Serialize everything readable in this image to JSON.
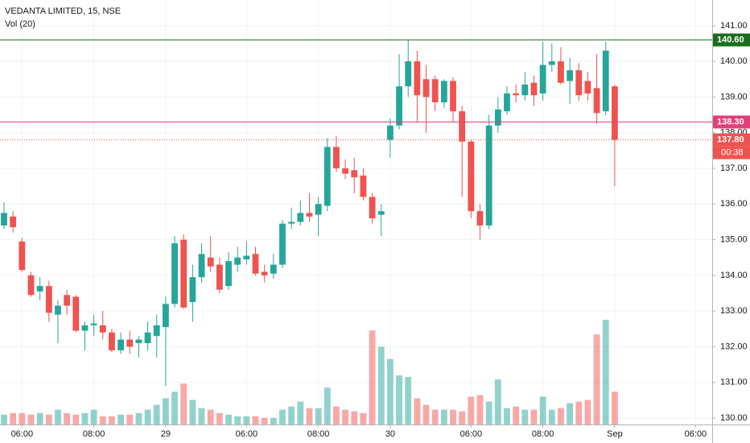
{
  "chart_data": {
    "type": "candlestick",
    "title": "VEDANTA LIMITED, 15, NSE",
    "subtitle": "Vol (20)",
    "up_color": "#26a69a",
    "down_color": "#ef5350",
    "grid": true,
    "x": [
      0,
      1,
      2,
      3,
      4,
      5,
      6,
      7,
      8,
      9,
      10,
      11,
      12,
      13,
      14,
      15,
      16,
      17,
      18,
      19,
      20,
      21,
      22,
      23,
      24,
      25,
      26,
      27,
      28,
      29,
      30,
      31,
      32,
      33,
      34,
      35,
      36,
      37,
      38,
      39,
      40,
      41,
      42,
      43,
      44,
      45,
      46,
      47,
      48,
      49,
      50,
      51,
      52,
      53,
      54,
      55,
      56,
      57,
      58,
      59,
      60,
      61,
      62,
      63,
      64,
      65,
      66,
      67,
      68
    ],
    "open": [
      135.4,
      135.65,
      134.95,
      134.0,
      133.55,
      133.7,
      132.9,
      133.45,
      133.4,
      132.45,
      132.6,
      132.6,
      132.4,
      131.9,
      132.2,
      132.1,
      132.1,
      132.3,
      132.55,
      133.2,
      135.0,
      133.25,
      133.95,
      134.5,
      134.3,
      133.7,
      134.3,
      134.45,
      134.6,
      134.1,
      134.05,
      134.3,
      135.45,
      135.5,
      135.75,
      135.7,
      135.95,
      137.6,
      137.0,
      136.95,
      136.8,
      136.2,
      135.7,
      137.8,
      138.2,
      139.3,
      140.0,
      139.5,
      139.5,
      138.85,
      139.45,
      138.6,
      137.75,
      135.8,
      135.4,
      138.2,
      138.6,
      139.1,
      139.05,
      139.4,
      139.1,
      139.9,
      140.0,
      139.45,
      139.75,
      139.45,
      139.25,
      138.6,
      139.3
    ],
    "high": [
      136.05,
      135.8,
      135.05,
      134.1,
      133.95,
      133.85,
      133.3,
      133.6,
      133.45,
      132.7,
      132.9,
      133.0,
      132.5,
      132.4,
      132.45,
      132.3,
      132.7,
      132.9,
      133.4,
      135.1,
      135.15,
      134.3,
      134.9,
      135.1,
      134.5,
      134.65,
      134.8,
      134.95,
      134.8,
      134.3,
      134.6,
      135.55,
      135.9,
      136.1,
      136.3,
      136.2,
      137.85,
      137.9,
      137.25,
      137.3,
      137.0,
      136.3,
      136.0,
      138.4,
      140.2,
      140.6,
      140.3,
      139.9,
      139.6,
      139.5,
      139.55,
      138.75,
      137.8,
      136.0,
      138.5,
      139.0,
      139.3,
      139.35,
      139.7,
      139.6,
      140.55,
      140.5,
      140.4,
      140.1,
      139.95,
      139.7,
      140.2,
      140.55,
      139.35
    ],
    "low": [
      135.3,
      135.2,
      134.1,
      133.4,
      133.3,
      132.7,
      132.1,
      132.9,
      132.4,
      131.9,
      132.3,
      132.2,
      131.85,
      131.8,
      131.8,
      131.7,
      131.9,
      131.7,
      130.9,
      133.1,
      133.05,
      132.7,
      133.8,
      134.1,
      133.5,
      133.6,
      134.1,
      134.3,
      134.0,
      133.8,
      133.9,
      134.2,
      135.3,
      135.4,
      135.5,
      135.1,
      135.8,
      136.9,
      136.7,
      136.3,
      136.1,
      135.45,
      135.1,
      137.3,
      138.1,
      139.0,
      138.3,
      138.0,
      138.6,
      138.7,
      138.3,
      136.2,
      135.6,
      135.0,
      135.3,
      138.0,
      138.5,
      138.85,
      138.9,
      138.75,
      138.9,
      139.7,
      139.35,
      138.8,
      138.9,
      138.9,
      138.25,
      138.5,
      136.5
    ],
    "close": [
      135.75,
      135.35,
      134.15,
      133.45,
      133.7,
      132.95,
      133.15,
      133.15,
      132.45,
      132.6,
      132.65,
      132.4,
      131.9,
      132.2,
      132.0,
      132.2,
      132.4,
      132.6,
      133.2,
      134.9,
      133.1,
      133.95,
      134.6,
      134.25,
      133.6,
      134.4,
      134.5,
      134.55,
      134.05,
      134.0,
      134.3,
      135.45,
      135.5,
      135.75,
      135.65,
      136.0,
      137.6,
      137.0,
      136.85,
      136.75,
      136.2,
      135.6,
      135.8,
      138.2,
      139.3,
      140.0,
      139.05,
      139.0,
      138.85,
      139.45,
      138.6,
      137.75,
      135.8,
      135.4,
      138.2,
      138.65,
      139.1,
      139.05,
      139.35,
      139.05,
      139.9,
      140.0,
      139.4,
      139.75,
      139.05,
      139.1,
      138.55,
      140.3,
      137.8
    ],
    "volume": [
      12,
      14,
      14,
      12,
      14,
      12,
      18,
      14,
      12,
      14,
      18,
      10,
      10,
      12,
      12,
      14,
      18,
      24,
      32,
      40,
      50,
      30,
      20,
      18,
      14,
      12,
      10,
      10,
      10,
      8,
      8,
      18,
      22,
      28,
      20,
      20,
      45,
      22,
      18,
      16,
      14,
      115,
      95,
      80,
      60,
      58,
      32,
      24,
      18,
      18,
      18,
      16,
      34,
      36,
      28,
      55,
      20,
      22,
      18,
      18,
      34,
      18,
      20,
      26,
      28,
      30,
      110,
      128,
      40
    ],
    "xlim": [
      -0.45,
      78.85
    ],
    "xticks": [
      {
        "value": 2,
        "label": "06:00"
      },
      {
        "value": 10,
        "label": "08:00"
      },
      {
        "value": 18,
        "label": "29"
      },
      {
        "value": 27,
        "label": "06:00"
      },
      {
        "value": 35,
        "label": "08:00"
      },
      {
        "value": 43,
        "label": "30"
      },
      {
        "value": 52,
        "label": "06:00"
      },
      {
        "value": 60,
        "label": "08:00"
      },
      {
        "value": 68,
        "label": "Sep"
      },
      {
        "value": 77,
        "label": "06:00"
      }
    ],
    "ylim": [
      129.82,
      141.72
    ],
    "yticks": [
      {
        "value": 130,
        "label": "130.00"
      },
      {
        "value": 131,
        "label": "131.00"
      },
      {
        "value": 132,
        "label": "132.00"
      },
      {
        "value": 133,
        "label": "133.00"
      },
      {
        "value": 134,
        "label": "134.00"
      },
      {
        "value": 135,
        "label": "135.00"
      },
      {
        "value": 136,
        "label": "136.00"
      },
      {
        "value": 137,
        "label": "137.00"
      },
      {
        "value": 138,
        "label": "138.00"
      },
      {
        "value": 139,
        "label": "139.00"
      },
      {
        "value": 140,
        "label": "140.00"
      },
      {
        "value": 141,
        "label": "141.00"
      }
    ],
    "price_lines": [
      {
        "value": 140.6,
        "label": "140.60",
        "color": "#1b6e1b",
        "style": "solid"
      },
      {
        "value": 138.3,
        "label": "138.30",
        "color": "#e0407a",
        "style": "solid"
      },
      {
        "value": 137.8,
        "label": "137.80",
        "color": "#ef5350",
        "style": "dotted"
      }
    ],
    "countdown": "00:38"
  }
}
